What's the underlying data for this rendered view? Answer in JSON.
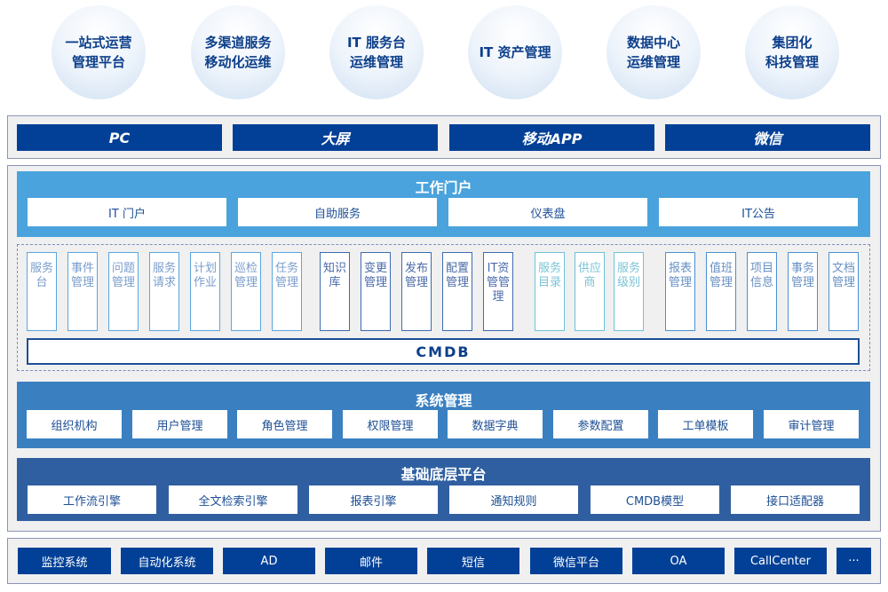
{
  "top_circles": [
    "一站式运营\n管理平台",
    "多渠道服务\n移动化运维",
    "IT 服务台\n运维管理",
    "IT 资产管理",
    "数据中心\n运维管理",
    "集团化\n科技管理"
  ],
  "channels": [
    "PC",
    "大屏",
    "移动APP",
    "微信"
  ],
  "portal": {
    "title": "工作门户",
    "items": [
      "IT 门户",
      "自助服务",
      "仪表盘",
      "IT公告"
    ]
  },
  "modules": {
    "group1": [
      "服务台",
      "事件管理",
      "问题管理",
      "服务请求",
      "计划作业",
      "巡检管理",
      "任务管理"
    ],
    "group2": [
      "知识库",
      "变更管理",
      "发布管理",
      "配置管理",
      "IT资管管理"
    ],
    "group3": [
      "服务目录",
      "供应商",
      "服务级别"
    ],
    "group4": [
      "报表管理",
      "值班管理",
      "项目信息",
      "事务管理",
      "文档管理"
    ],
    "cmdb": "CMDB"
  },
  "system": {
    "title": "系统管理",
    "items": [
      "组织机构",
      "用户管理",
      "角色管理",
      "权限管理",
      "数据字典",
      "参数配置",
      "工单模板",
      "审计管理"
    ]
  },
  "base": {
    "title": "基础底层平台",
    "items": [
      "工作流引擎",
      "全文检索引擎",
      "报表引擎",
      "通知规则",
      "CMDB模型",
      "接口适配器"
    ]
  },
  "integrations": [
    "监控系统",
    "自动化系统",
    "AD",
    "邮件",
    "短信",
    "微信平台",
    "OA",
    "CallCenter",
    "···"
  ],
  "colors": {
    "navy": "#024097",
    "portal": "#4aa3dc",
    "system": "#3a80c1",
    "base": "#2f5fa0",
    "group1": "#5aa6e0",
    "group2": "#3d6bb0",
    "group3": "#6cc4d8",
    "group4": "#4b90d6"
  }
}
